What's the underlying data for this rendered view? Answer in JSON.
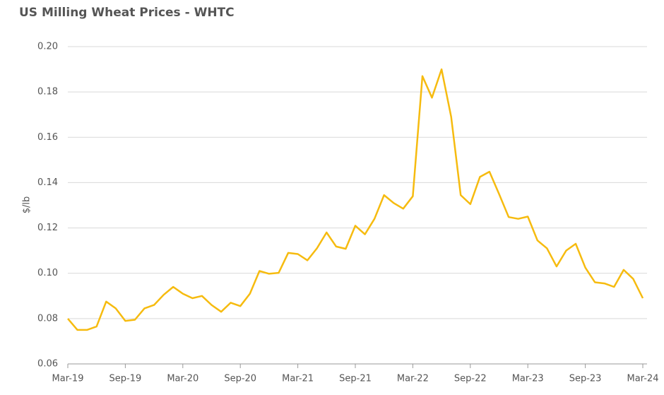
{
  "chart_data": {
    "type": "line",
    "title": "US Milling Wheat Prices - WHTC",
    "y_label": "$/lb",
    "categories": [
      "Mar-19",
      null,
      null,
      null,
      null,
      null,
      "Sep-19",
      null,
      null,
      null,
      null,
      null,
      "Mar-20",
      null,
      null,
      null,
      null,
      null,
      "Sep-20",
      null,
      null,
      null,
      null,
      null,
      "Mar-21",
      null,
      null,
      null,
      null,
      null,
      "Sep-21",
      null,
      null,
      null,
      null,
      null,
      "Mar-22",
      null,
      null,
      null,
      null,
      null,
      "Sep-22",
      null,
      null,
      null,
      null,
      null,
      "Mar-23",
      null,
      null,
      null,
      null,
      null,
      "Sep-23",
      null,
      null,
      null,
      null,
      null,
      "Mar-24"
    ],
    "series": [
      {
        "name": "WHTC",
        "color": "#f6bb0f",
        "values": [
          0.08,
          0.075,
          0.075,
          0.0765,
          0.0875,
          0.0845,
          0.079,
          0.0795,
          0.0845,
          0.086,
          0.0905,
          0.094,
          0.091,
          0.089,
          0.09,
          0.086,
          0.083,
          0.087,
          0.0855,
          0.091,
          0.101,
          0.0998,
          0.1002,
          0.109,
          0.1085,
          0.1057,
          0.111,
          0.118,
          0.1118,
          0.1108,
          0.121,
          0.1172,
          0.124,
          0.1345,
          0.131,
          0.1285,
          0.134,
          0.187,
          0.1775,
          0.19,
          0.169,
          0.1345,
          0.1305,
          0.1425,
          0.1448,
          0.135,
          0.1248,
          0.124,
          0.125,
          0.1145,
          0.111,
          0.103,
          0.11,
          0.113,
          0.1025,
          0.096,
          0.0955,
          0.094,
          0.1015,
          0.0975,
          0.089
        ]
      }
    ],
    "ylim": [
      0.06,
      0.2
    ],
    "yticks": [
      {
        "value": 0.06,
        "label": "0.06"
      },
      {
        "value": 0.08,
        "label": "0.08"
      },
      {
        "value": 0.1,
        "label": "0.10"
      },
      {
        "value": 0.12,
        "label": "0.12"
      },
      {
        "value": 0.14,
        "label": "0.14"
      },
      {
        "value": 0.16,
        "label": "0.16"
      },
      {
        "value": 0.18,
        "label": "0.18"
      },
      {
        "value": 0.2,
        "label": "0.20"
      }
    ],
    "grid": true
  }
}
